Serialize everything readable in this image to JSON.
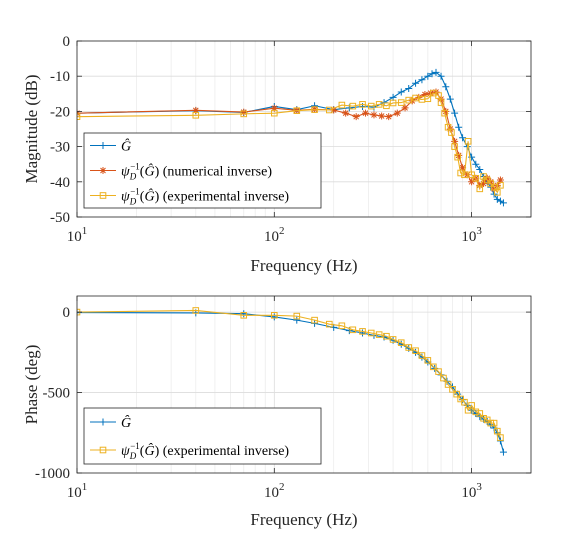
{
  "chart_data": [
    {
      "type": "line",
      "xscale": "log",
      "xlim": [
        10,
        2000
      ],
      "ylim": [
        -50,
        0
      ],
      "grid": true,
      "xlabel": "Frequency (Hz)",
      "ylabel": "Magnitude (dB)",
      "x_ticks": [
        10,
        100,
        1000
      ],
      "x_tick_labels": [
        {
          "base": "10",
          "exp": "1"
        },
        {
          "base": "10",
          "exp": "2"
        },
        {
          "base": "10",
          "exp": "3"
        }
      ],
      "y_ticks": [
        0,
        -10,
        -20,
        -30,
        -40,
        -50
      ],
      "y_tick_labels": [
        "0",
        "-10",
        "-20",
        "-30",
        "-40",
        "-50"
      ],
      "legend_position": "lower-left",
      "series": [
        {
          "name": "Ĝ",
          "legend": {
            "sym": "ψ",
            "text": ""
          },
          "color": "#0072BD",
          "marker": "plus",
          "x": [
            10,
            40,
            70,
            100,
            130,
            160,
            200,
            240,
            280,
            320,
            360,
            400,
            440,
            480,
            520,
            560,
            600,
            630,
            660,
            700,
            740,
            780,
            820,
            860,
            900,
            950,
            1000,
            1050,
            1100,
            1150,
            1200,
            1250,
            1300,
            1350,
            1400,
            1450
          ],
          "y": [
            -20.5,
            -19.8,
            -20.3,
            -18.6,
            -19.5,
            -18.4,
            -19.5,
            -19.0,
            -18.6,
            -18.8,
            -17.5,
            -16.0,
            -14.5,
            -13.5,
            -12.0,
            -11.0,
            -10.0,
            -9.3,
            -8.9,
            -10.0,
            -13.0,
            -16.5,
            -20.5,
            -24.5,
            -27.5,
            -30.0,
            -33.0,
            -35.0,
            -36.5,
            -38.5,
            -40.0,
            -41.5,
            -43.5,
            -45.0,
            -45.5,
            -46.0
          ]
        },
        {
          "name": "ψ_D^{-1}(Ĝ) (numerical inverse)",
          "legend": {
            "sym": "ψ",
            "text": "(numerical inverse)"
          },
          "color": "#D95319",
          "marker": "star",
          "x": [
            10,
            40,
            70,
            100,
            130,
            160,
            200,
            230,
            260,
            290,
            320,
            350,
            380,
            420,
            460,
            500,
            540,
            580,
            620,
            660,
            700,
            740,
            780,
            820,
            860,
            900,
            950,
            1000,
            1050,
            1100,
            1150,
            1200,
            1250,
            1300,
            1350,
            1400
          ],
          "y": [
            -20.5,
            -19.7,
            -20.2,
            -19.1,
            -19.7,
            -19.4,
            -19.6,
            -20.5,
            -21.5,
            -20.5,
            -21.0,
            -21.3,
            -21.5,
            -20.5,
            -19.0,
            -17.0,
            -16.0,
            -15.2,
            -14.8,
            -14.5,
            -16.5,
            -20.0,
            -25.0,
            -28.5,
            -32.5,
            -36.0,
            -38.0,
            -40.0,
            -39.0,
            -41.0,
            -40.5,
            -39.0,
            -40.0,
            -42.0,
            -41.0,
            -39.5
          ]
        },
        {
          "name": "ψ_D^{-1}(Ĝ) (experimental inverse)",
          "legend": {
            "sym": "ψ",
            "text": "(experimental inverse)"
          },
          "color": "#EDB120",
          "marker": "square",
          "x": [
            10,
            40,
            70,
            100,
            130,
            160,
            190,
            220,
            250,
            280,
            310,
            340,
            370,
            400,
            440,
            480,
            520,
            560,
            600,
            640,
            680,
            700,
            730,
            760,
            790,
            820,
            850,
            880,
            920,
            960,
            1000,
            1050,
            1100,
            1150,
            1200,
            1250,
            1300,
            1350,
            1400
          ],
          "y": [
            -21.5,
            -21.1,
            -20.7,
            -20.5,
            -19.8,
            -19.5,
            -19.6,
            -18.2,
            -18.5,
            -18.0,
            -18.5,
            -18.0,
            -18.4,
            -17.6,
            -17.5,
            -16.8,
            -16.2,
            -16.6,
            -16.4,
            -14.8,
            -15.5,
            -17.5,
            -20.5,
            -24.5,
            -26.0,
            -30.0,
            -33.0,
            -37.5,
            -38.0,
            -28.5,
            -38.0,
            -39.0,
            -42.0,
            -38.5,
            -39.5,
            -40.5,
            -41.5,
            -43.0,
            -41.0
          ]
        }
      ]
    },
    {
      "type": "line",
      "xscale": "log",
      "xlim": [
        10,
        2000
      ],
      "ylim": [
        -1000,
        100
      ],
      "grid": true,
      "xlabel": "Frequency (Hz)",
      "ylabel": "Phase (deg)",
      "x_ticks": [
        10,
        100,
        1000
      ],
      "x_tick_labels": [
        {
          "base": "10",
          "exp": "1"
        },
        {
          "base": "10",
          "exp": "2"
        },
        {
          "base": "10",
          "exp": "3"
        }
      ],
      "y_ticks": [
        0,
        -500,
        -1000
      ],
      "y_tick_labels": [
        "0",
        "-500",
        "-1000"
      ],
      "legend_position": "lower-left",
      "series": [
        {
          "name": "Ĝ",
          "legend": {
            "sym": "Ĝ",
            "text": ""
          },
          "color": "#0072BD",
          "marker": "plus",
          "x": [
            10,
            40,
            70,
            100,
            130,
            160,
            200,
            240,
            280,
            320,
            360,
            400,
            440,
            480,
            520,
            560,
            600,
            650,
            700,
            750,
            800,
            850,
            900,
            950,
            1000,
            1050,
            1100,
            1150,
            1200,
            1250,
            1300,
            1350,
            1400,
            1450
          ],
          "y": [
            -3,
            -5,
            -10,
            -30,
            -50,
            -70,
            -95,
            -115,
            -130,
            -145,
            -155,
            -175,
            -200,
            -225,
            -250,
            -280,
            -310,
            -350,
            -390,
            -430,
            -465,
            -510,
            -545,
            -580,
            -610,
            -630,
            -650,
            -665,
            -680,
            -700,
            -720,
            -750,
            -800,
            -870
          ]
        },
        {
          "name": "ψ_D^{-1}(Ĝ) (experimental inverse)",
          "legend": {
            "sym": "ψ",
            "text": "(experimental inverse)"
          },
          "color": "#EDB120",
          "marker": "square",
          "x": [
            10,
            40,
            70,
            100,
            130,
            160,
            190,
            220,
            250,
            280,
            310,
            340,
            370,
            400,
            440,
            480,
            520,
            560,
            600,
            640,
            680,
            720,
            760,
            800,
            840,
            880,
            920,
            960,
            1000,
            1050,
            1100,
            1150,
            1200,
            1250,
            1300,
            1350,
            1400
          ],
          "y": [
            0,
            10,
            -20,
            -20,
            -25,
            -50,
            -75,
            -85,
            -110,
            -120,
            -130,
            -140,
            -150,
            -170,
            -190,
            -220,
            -240,
            -270,
            -300,
            -340,
            -370,
            -410,
            -450,
            -480,
            -510,
            -540,
            -560,
            -610,
            -580,
            -620,
            -630,
            -660,
            -670,
            -690,
            -690,
            -740,
            -780
          ]
        }
      ]
    }
  ]
}
